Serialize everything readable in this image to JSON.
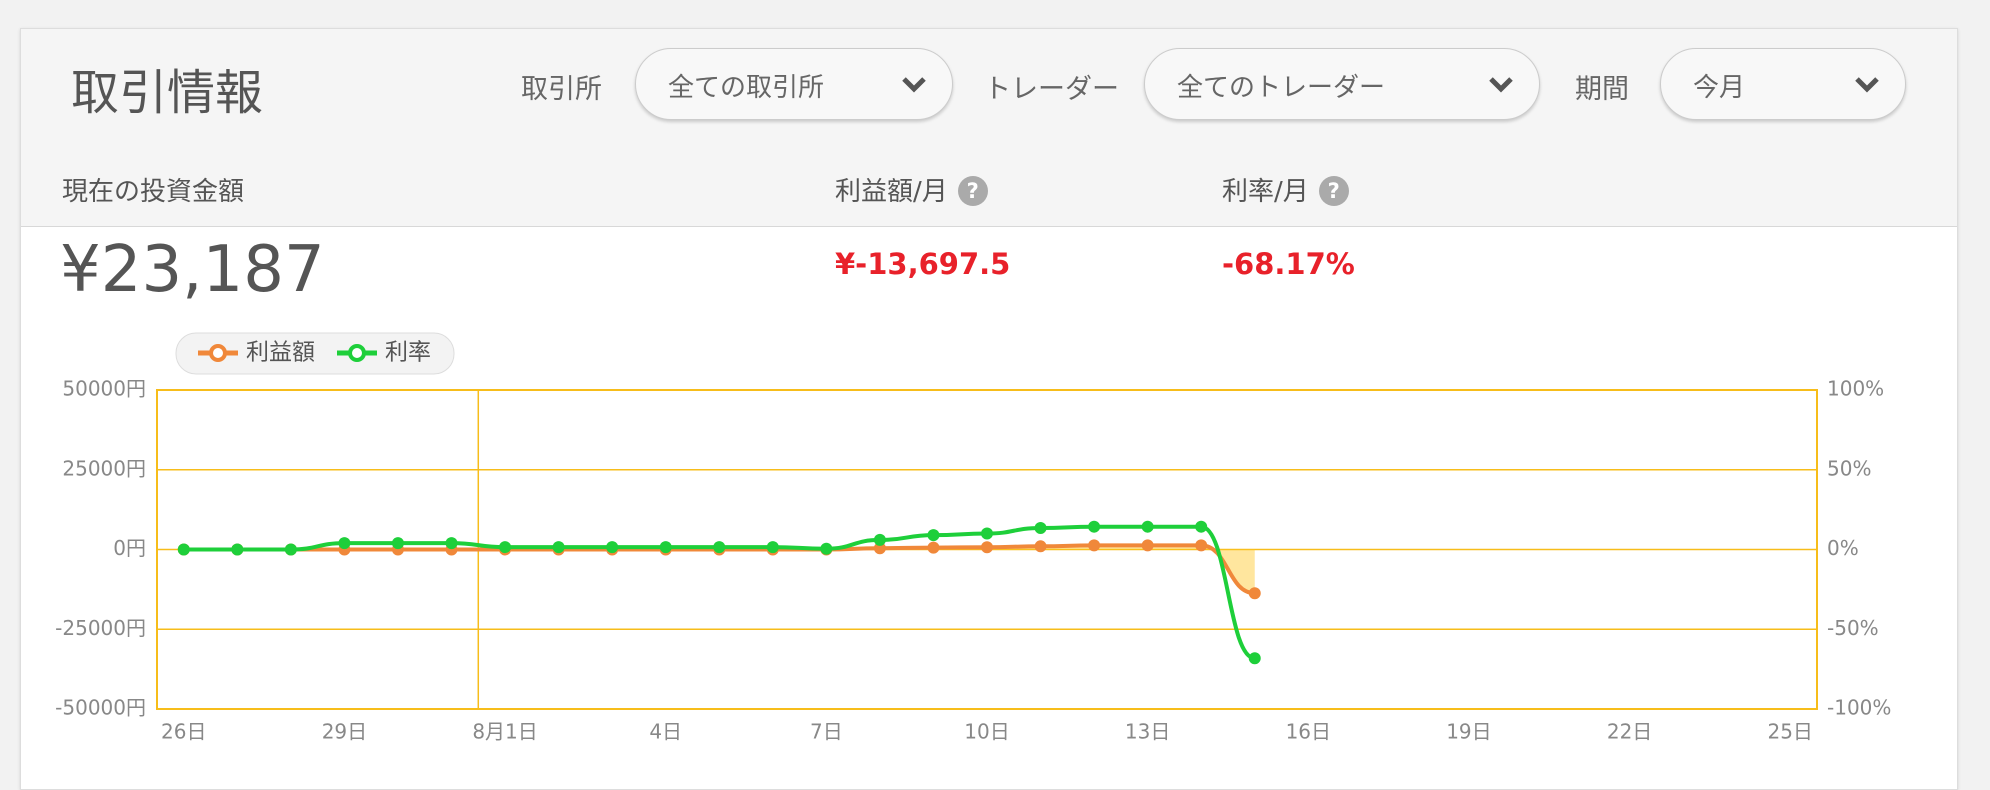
{
  "header": {
    "title": "取引情報",
    "filters": [
      {
        "label": "取引所",
        "value": "全ての取引所"
      },
      {
        "label": "トレーダー",
        "value": "全てのトレーダー"
      },
      {
        "label": "期間",
        "value": "今月"
      }
    ]
  },
  "stats": [
    {
      "label": "現在の投資金額",
      "value": "¥23,187"
    },
    {
      "label": "利益額/月",
      "help": "?",
      "value": "¥-13,697.5"
    },
    {
      "label": "利率/月",
      "help": "?",
      "value": "-68.17%"
    }
  ],
  "chart_data": {
    "type": "line",
    "categories": [
      "26日",
      null,
      null,
      "29日",
      null,
      null,
      "8月1日",
      null,
      null,
      "4日",
      null,
      null,
      "7日",
      null,
      null,
      "10日",
      null,
      null,
      "13日",
      null,
      null,
      "16日",
      null,
      null,
      "19日",
      null,
      null,
      "22日",
      null,
      null,
      "25日"
    ],
    "series": [
      {
        "name": "利益額",
        "color": "#f0883a",
        "values": [
          0,
          0,
          0,
          0,
          0,
          0,
          0,
          0,
          0,
          0,
          0,
          0,
          0,
          400,
          600,
          700,
          1000,
          1300,
          1300,
          1300,
          -13697.5,
          null,
          null,
          null,
          null,
          null,
          null,
          null,
          null,
          null,
          null
        ]
      },
      {
        "name": "利率",
        "color": "#1ecf3a",
        "axis": "y2",
        "values": [
          0,
          0,
          0,
          4,
          4,
          4,
          1.5,
          1.5,
          1.5,
          1.5,
          1.5,
          1.5,
          0.5,
          6,
          9,
          10,
          13.5,
          14.3,
          14.3,
          14.3,
          -68.17,
          null,
          null,
          null,
          null,
          null,
          null,
          null,
          null,
          null,
          null
        ]
      }
    ],
    "ylim": [
      -50000,
      50000
    ],
    "yticks": [
      {
        "value": -50000,
        "label": "-50000円"
      },
      {
        "value": -25000,
        "label": "-25000円"
      },
      {
        "value": 0,
        "label": "0円"
      },
      {
        "value": 25000,
        "label": "25000円"
      },
      {
        "value": 50000,
        "label": "50000円"
      }
    ],
    "y2lim": [
      -100,
      100
    ],
    "y2ticks": [
      {
        "value": -100,
        "label": "-100%"
      },
      {
        "value": -50,
        "label": "-50%"
      },
      {
        "value": 0,
        "label": "0%"
      },
      {
        "value": 50,
        "label": "50%"
      },
      {
        "value": 100,
        "label": "100%"
      }
    ],
    "grid": true
  }
}
